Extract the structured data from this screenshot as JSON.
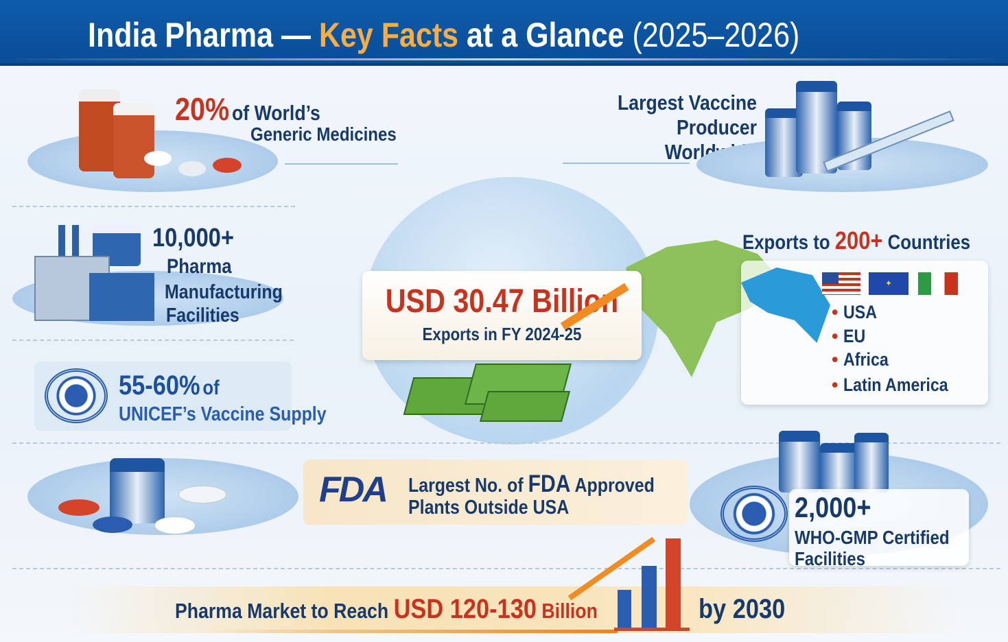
{
  "header": {
    "title_part1": "India Pharma — ",
    "title_highlight": "Key Facts",
    "title_part2": " at a Glance ",
    "title_years": "(2025–2026)"
  },
  "colors": {
    "header_blue": "#0b55a2",
    "accent_orange": "#f5ad45",
    "red": "#c8331e",
    "navy": "#173a6b"
  },
  "generic": {
    "value": "20%",
    "line1": "of World’s",
    "line2": "Generic Medicines",
    "icon": "medicine-bottles-icon"
  },
  "vaccine": {
    "line1": "Largest Vaccine",
    "line2": "Producer Worldwide",
    "icon": "vaccine-vials-syringe-icon"
  },
  "facilities": {
    "value": "10,000+",
    "line1": "Pharma",
    "line2": "Manufacturing",
    "line3": "Facilities",
    "icon": "factory-icon"
  },
  "unicef": {
    "value": "55-60%",
    "of": "of",
    "line2": "UNICEF’s Vaccine Supply",
    "icon": "un-emblem-icon"
  },
  "exports_value": {
    "value": "USD 30.47 Billion",
    "label": "Exports in FY 2024-25",
    "icon": "money-stack-icon"
  },
  "countries": {
    "prefix": "Exports to ",
    "value": "200+",
    "suffix": " Countries",
    "flags": [
      "usa-flag-icon",
      "eu-flag-icon",
      "italy-flag-icon"
    ],
    "regions": [
      "USA",
      "EU",
      "Africa",
      "Latin America"
    ]
  },
  "fda": {
    "logo": "FDA",
    "line1_a": "Largest No. of ",
    "line1_b": "FDA",
    "line1_c": " Approved",
    "line2": "Plants Outside USA"
  },
  "who": {
    "value": "2,000+",
    "line1": "WHO-GMP Certified",
    "line2": "Facilities",
    "icon": "who-emblem-icon"
  },
  "market": {
    "prefix": "Pharma Market to Reach ",
    "value": "USD 120-130",
    "unit": " Billion",
    "suffix": "by 2030",
    "icon": "bar-chart-growth-icon"
  }
}
